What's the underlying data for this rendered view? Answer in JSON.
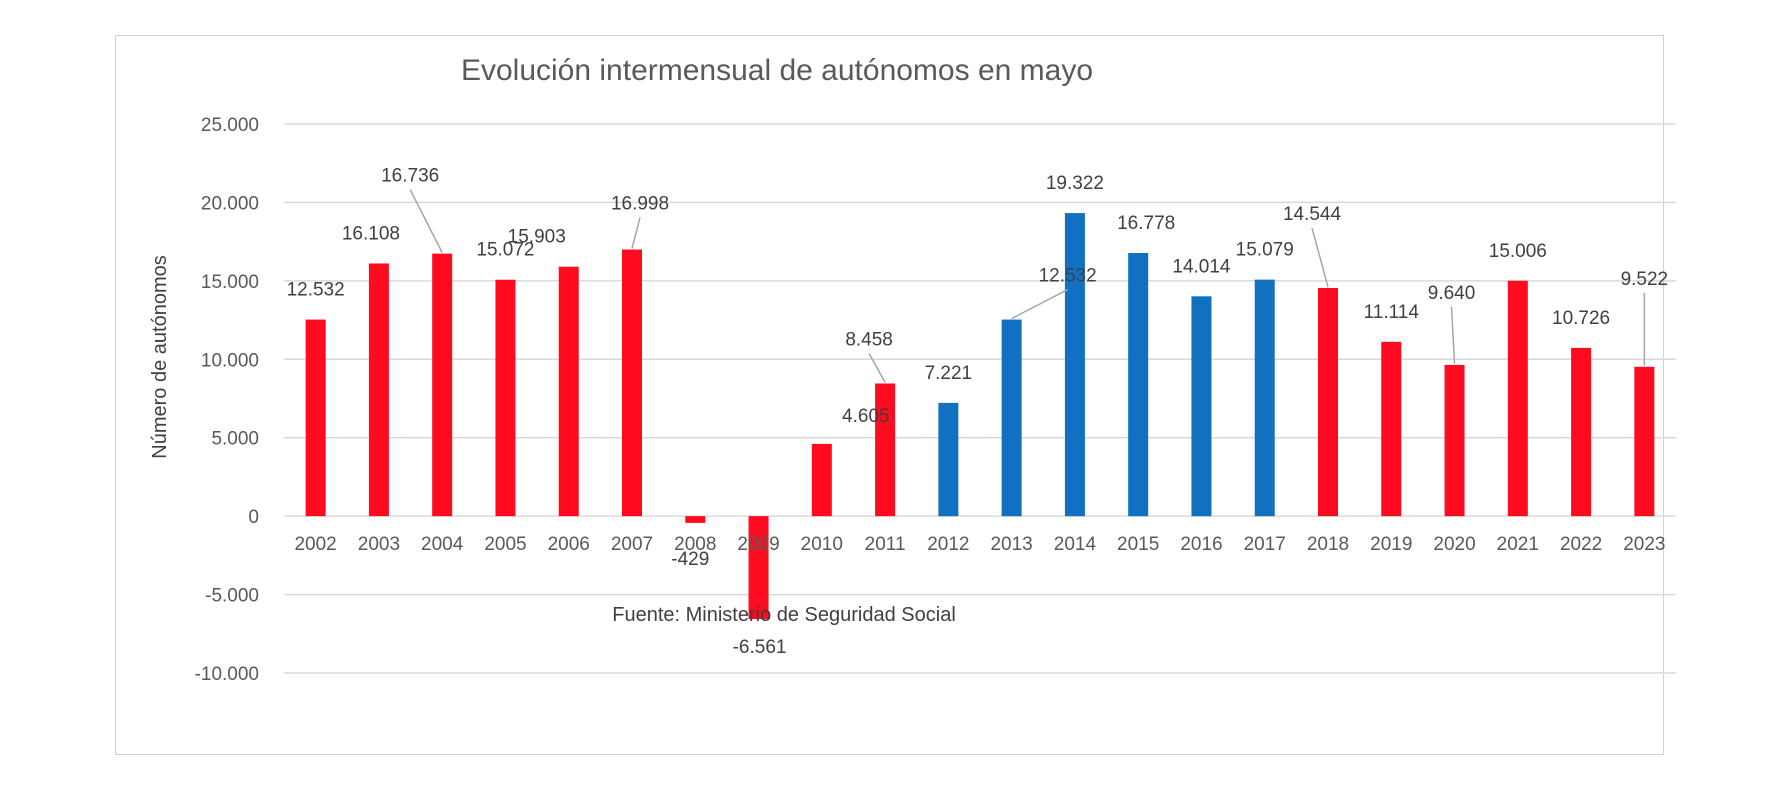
{
  "chart_data": {
    "type": "bar",
    "title": "Evolución intermensual de autónomos en mayo",
    "ylabel": "Número de autónomos",
    "xlabel": "",
    "source": "Fuente: Ministerio de Seguridad Social",
    "ylim": [
      -10000,
      25000
    ],
    "yticks": [
      25000,
      20000,
      15000,
      10000,
      5000,
      0,
      -5000,
      -10000
    ],
    "ytick_labels": [
      "25.000",
      "20.000",
      "15.000",
      "10.000",
      "5.000",
      "0",
      "-5.000",
      "-10.000"
    ],
    "grid": true,
    "legend": "none",
    "categories": [
      "2002",
      "2003",
      "2004",
      "2005",
      "2006",
      "2007",
      "2008",
      "2009",
      "2010",
      "2011",
      "2012",
      "2013",
      "2014",
      "2015",
      "2016",
      "2017",
      "2018",
      "2019",
      "2020",
      "2021",
      "2022",
      "2023"
    ],
    "values": [
      12532,
      16108,
      16736,
      15072,
      15903,
      16998,
      -429,
      -6561,
      4605,
      8458,
      7221,
      12532,
      19322,
      16778,
      14014,
      15079,
      14544,
      11114,
      9640,
      15006,
      10726,
      9522
    ],
    "value_labels": [
      "12.532",
      "16.108",
      "16.736",
      "15.072",
      "15.903",
      "16.998",
      "-429",
      "-6.561",
      "4.605",
      "8.458",
      "7.221",
      "12.532",
      "19.322",
      "16.778",
      "14.014",
      "15.079",
      "14.544",
      "11.114",
      "9.640",
      "15.006",
      "10.726",
      "9.522"
    ],
    "bar_colors": [
      "#ff0a1e",
      "#ff0a1e",
      "#ff0a1e",
      "#ff0a1e",
      "#ff0a1e",
      "#ff0a1e",
      "#ff0a1e",
      "#ff0a1e",
      "#ff0a1e",
      "#ff0a1e",
      "#1170c0",
      "#1170c0",
      "#1170c0",
      "#1170c0",
      "#1170c0",
      "#1170c0",
      "#ff0a1e",
      "#ff0a1e",
      "#ff0a1e",
      "#ff0a1e",
      "#ff0a1e",
      "#ff0a1e"
    ]
  }
}
